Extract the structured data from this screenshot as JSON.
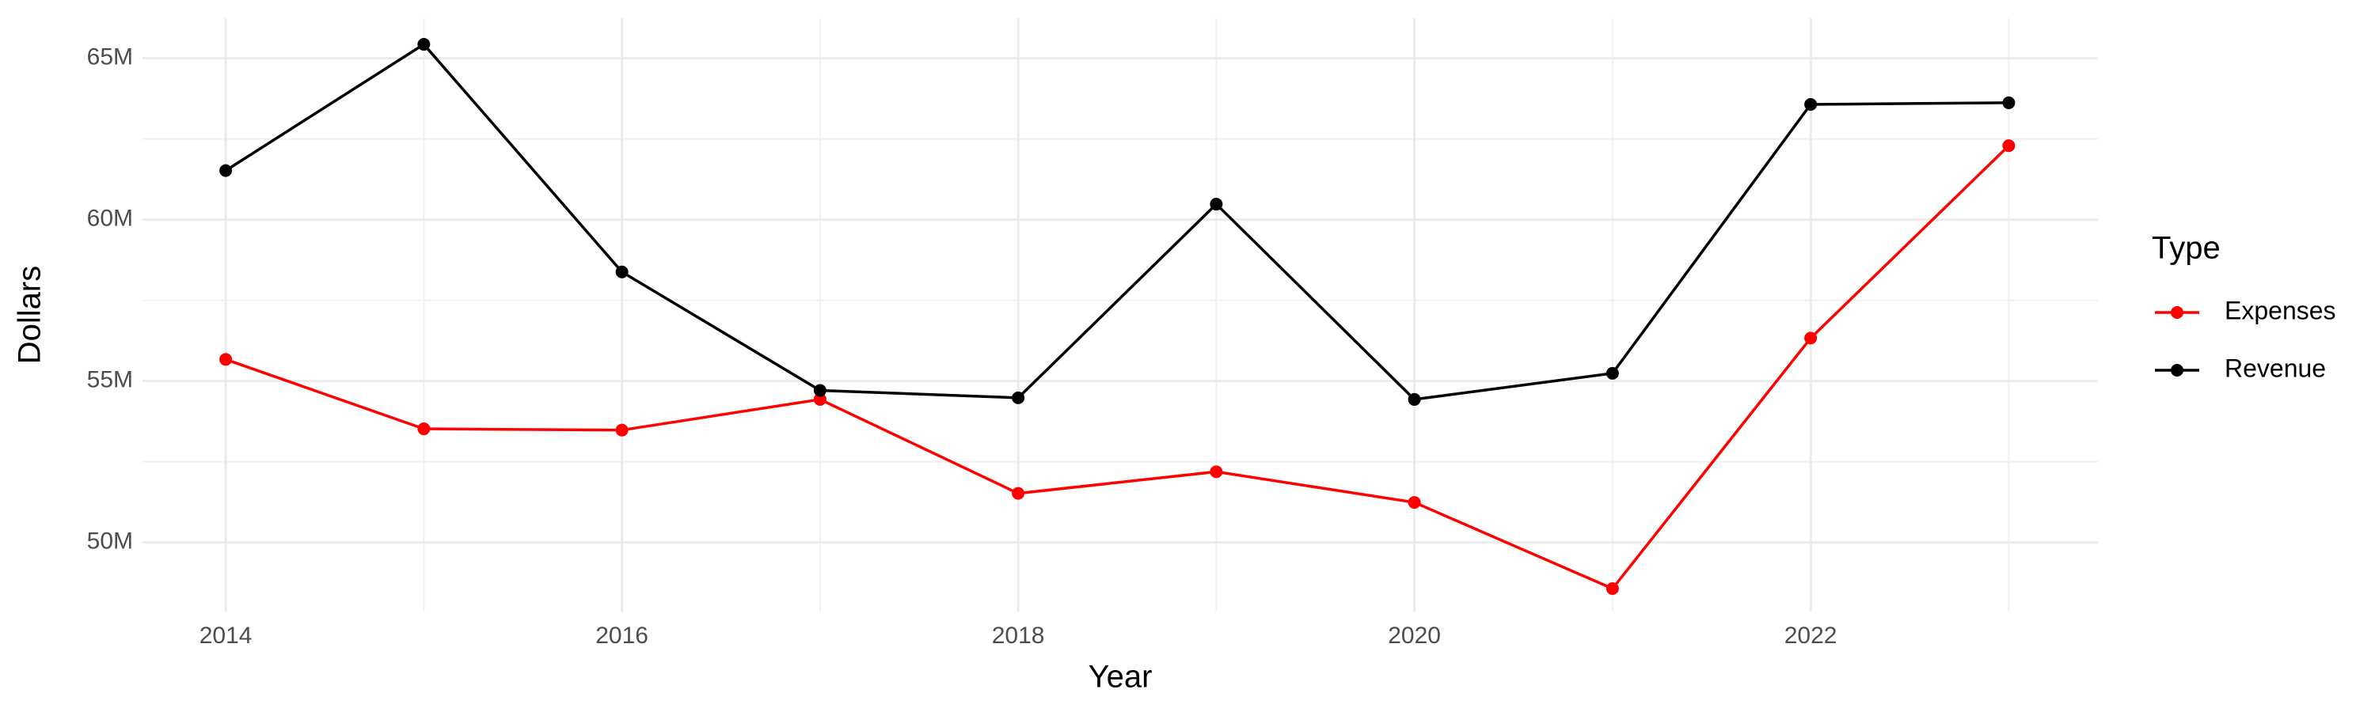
{
  "chart_data": {
    "type": "line",
    "x_label": "Year",
    "y_label": "Dollars",
    "legend_title": "Type",
    "x": [
      2014,
      2015,
      2016,
      2017,
      2018,
      2019,
      2020,
      2021,
      2022,
      2023
    ],
    "series": [
      {
        "name": "Expenses",
        "color": "#ff0000",
        "values": [
          55670000,
          53520000,
          53480000,
          54430000,
          51520000,
          52190000,
          51240000,
          48570000,
          56330000,
          62290000
        ]
      },
      {
        "name": "Revenue",
        "color": "#000000",
        "values": [
          61520000,
          65430000,
          58380000,
          54710000,
          54480000,
          60480000,
          54430000,
          55240000,
          63570000,
          63620000
        ]
      }
    ],
    "xlim": [
      2013.58,
      2023.45
    ],
    "xticks": [
      2014,
      2016,
      2018,
      2020,
      2022
    ],
    "ylim": [
      47860000,
      66240000
    ],
    "yticks": [
      {
        "value": 50000000,
        "label": "50M"
      },
      {
        "value": 55000000,
        "label": "55M"
      },
      {
        "value": 60000000,
        "label": "60M"
      },
      {
        "value": 65000000,
        "label": "65M"
      }
    ],
    "grid": true,
    "legend_position": "right"
  }
}
